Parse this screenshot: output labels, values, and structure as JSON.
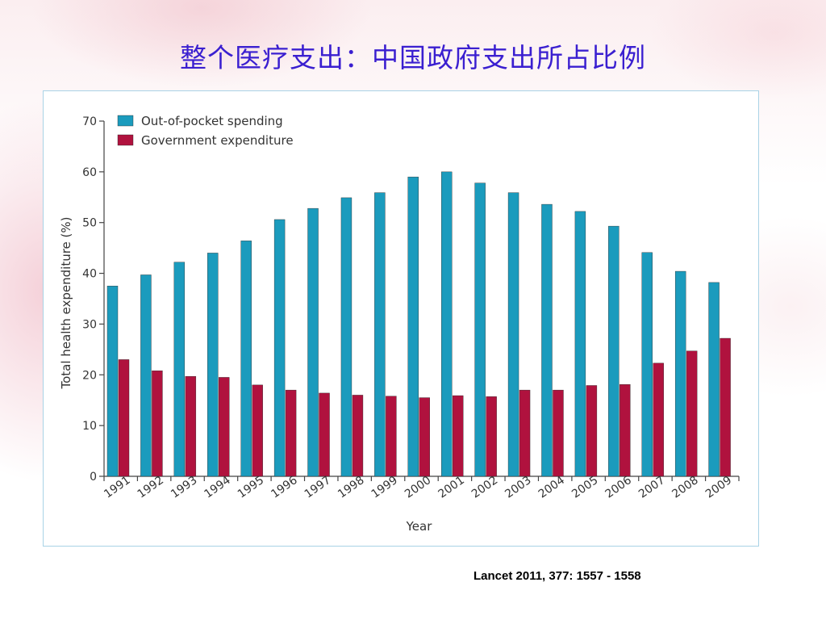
{
  "slide": {
    "title": "整个医疗支出：中国政府支出所占比例",
    "citation": "Lancet 2011, 377: 1557 - 1558"
  },
  "colors": {
    "title": "#3a1fd0",
    "out_of_pocket": "#1b9bbd",
    "government": "#b0123e",
    "frame_border": "#a9d3e6"
  },
  "chart_data": {
    "type": "bar",
    "xlabel": "Year",
    "ylabel": "Total health expenditure (%)",
    "ylim": [
      0,
      70
    ],
    "yticks": [
      0,
      10,
      20,
      30,
      40,
      50,
      60,
      70
    ],
    "grid": false,
    "legend_position": "top-left",
    "categories": [
      "1991",
      "1992",
      "1993",
      "1994",
      "1995",
      "1996",
      "1997",
      "1998",
      "1999",
      "2000",
      "2001",
      "2002",
      "2003",
      "2004",
      "2005",
      "2006",
      "2007",
      "2008",
      "2009"
    ],
    "series": [
      {
        "name": "Out-of-pocket spending",
        "values": [
          37.5,
          39.7,
          42.2,
          44.0,
          46.4,
          50.6,
          52.8,
          54.9,
          55.9,
          59.0,
          60.0,
          57.8,
          55.9,
          53.6,
          52.2,
          49.3,
          44.1,
          40.4,
          38.2
        ]
      },
      {
        "name": "Government expenditure",
        "values": [
          23.0,
          20.8,
          19.7,
          19.5,
          18.0,
          17.0,
          16.4,
          16.0,
          15.8,
          15.5,
          15.9,
          15.7,
          17.0,
          17.0,
          17.9,
          18.1,
          22.3,
          24.7,
          27.2
        ]
      }
    ]
  }
}
